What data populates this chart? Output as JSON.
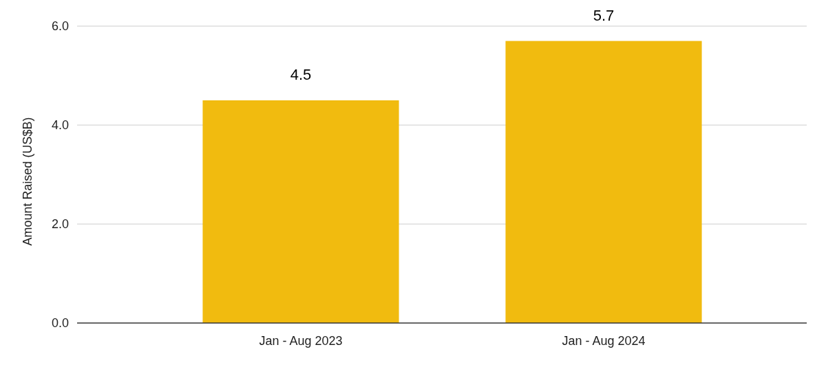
{
  "chart_data": {
    "type": "bar",
    "ylabel": "Amount Raised (US$B)",
    "categories": [
      "Jan - Aug 2023",
      "Jan - Aug 2024"
    ],
    "values": [
      4.5,
      5.7
    ],
    "color": "#f1bb0f",
    "ylim": [
      0,
      6
    ],
    "yticks": [
      {
        "value": 0,
        "label": "0.0"
      },
      {
        "value": 2,
        "label": "2.0"
      },
      {
        "value": 4,
        "label": "4.0"
      },
      {
        "value": 6,
        "label": "6.0"
      }
    ],
    "grid": true,
    "data_labels": true
  }
}
